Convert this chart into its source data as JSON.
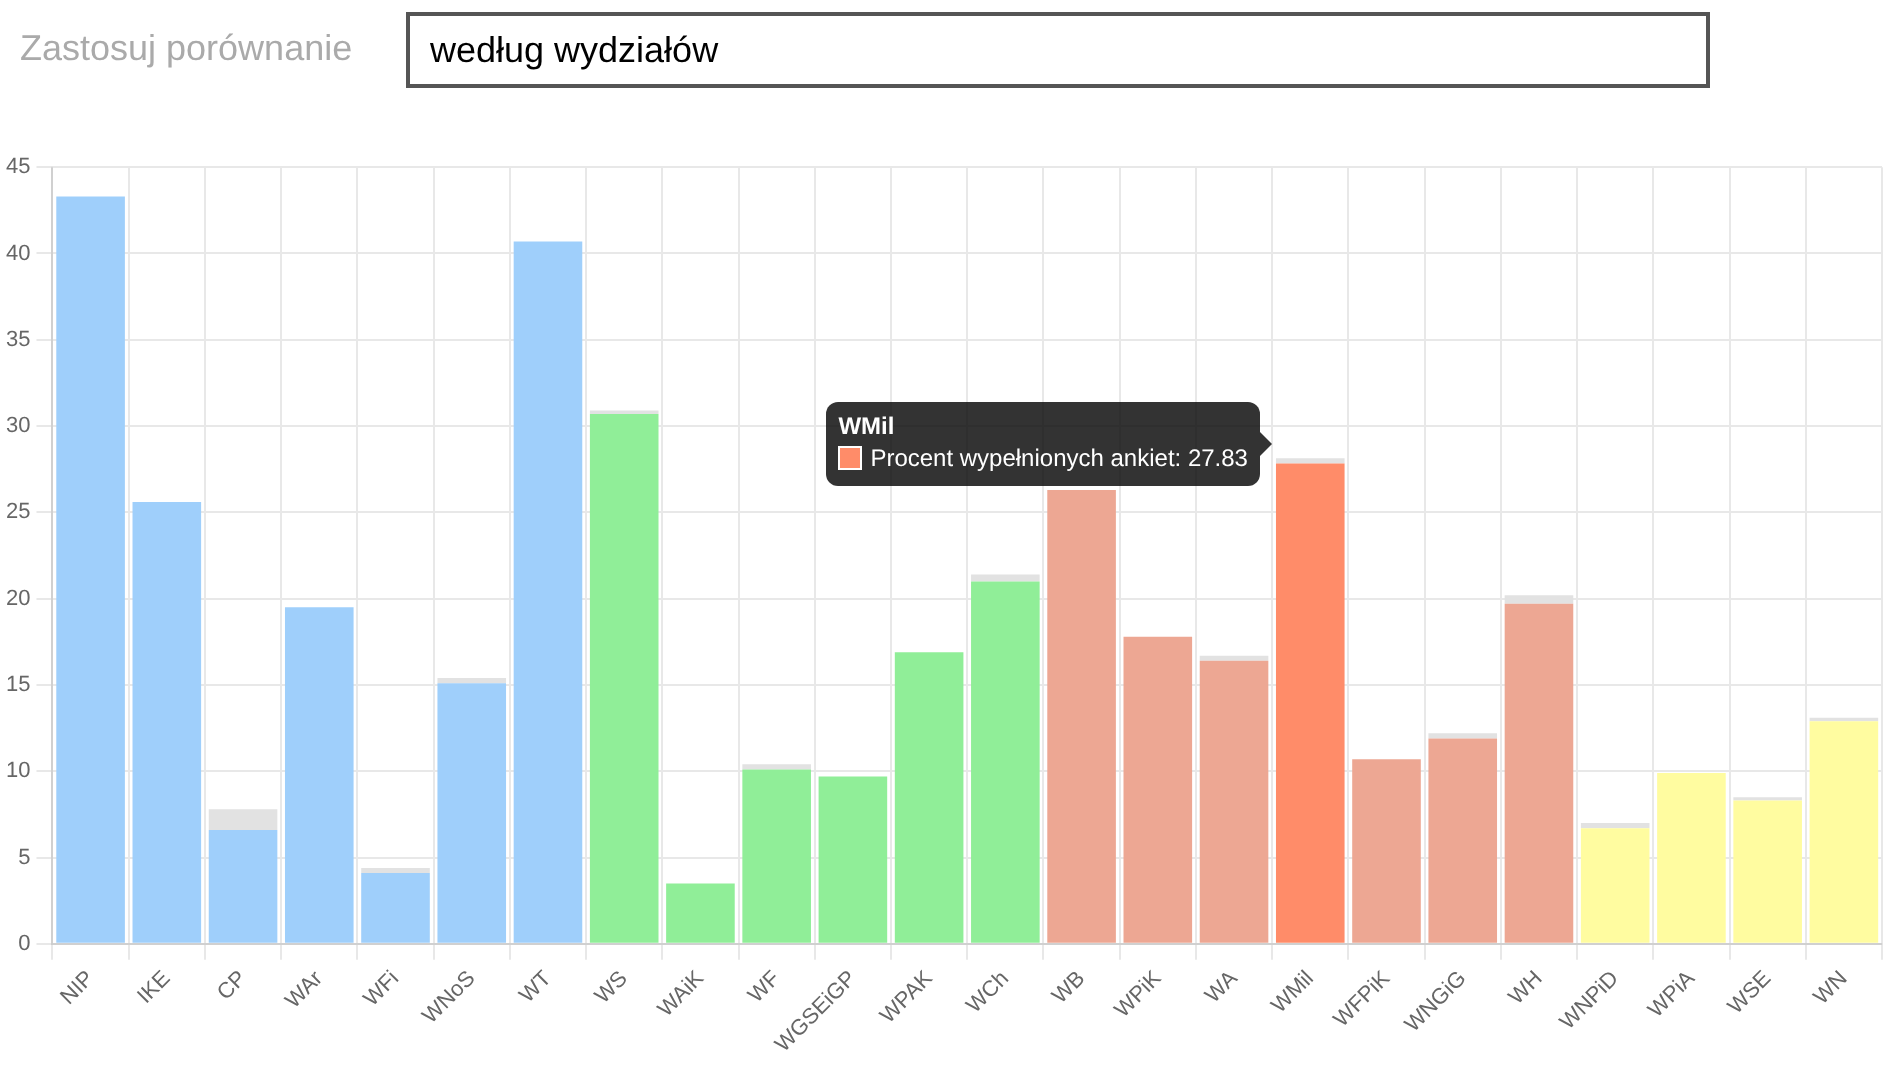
{
  "chart_data": {
    "type": "bar",
    "annotations": [
      "Zastosuj porównanie",
      "według wydziałów",
      {
        "text": "Procent wypełnionych ankiet: 27.83",
        "x": "WMil",
        "y": 27.83
      }
    ],
    "categories": [
      "NIP",
      "IKE",
      "CP",
      "WAr",
      "WFi",
      "WNoS",
      "WT",
      "WS",
      "WAiK",
      "WF",
      "WGSEiGP",
      "WPAK",
      "WCh",
      "WB",
      "WPiK",
      "WA",
      "WMil",
      "WFPiK",
      "WNGiG",
      "WH",
      "WNPiD",
      "WPiA",
      "WSE",
      "WN"
    ],
    "series": [
      {
        "colors": [
          "#9fcffb",
          "#9fcffb",
          "#9fcffb",
          "#9fcffb",
          "#9fcffb",
          "#9fcffb",
          "#9fcffb",
          "#90ee98",
          "#90ee98",
          "#90ee98",
          "#90ee98",
          "#90ee98",
          "#90ee98",
          "#eda793",
          "#eda793",
          "#eda793",
          "#ff8c69",
          "#eda793",
          "#eda793",
          "#eda793",
          "#fffca0",
          "#fffca0",
          "#fffca0",
          "#fffca0"
        ],
        "values": [
          43.3,
          25.6,
          6.6,
          19.5,
          4.1,
          15.1,
          40.7,
          30.7,
          3.5,
          10.1,
          9.7,
          16.9,
          21.0,
          26.3,
          17.8,
          16.4,
          27.83,
          10.7,
          11.9,
          19.7,
          6.7,
          9.9,
          8.3,
          12.9
        ]
      },
      {
        "color": "#e2e2e2",
        "values": [
          0,
          0,
          1.2,
          0,
          0.3,
          0.3,
          0,
          0.2,
          0,
          0.3,
          0,
          0,
          0.4,
          0,
          0,
          0.3,
          0.3,
          0,
          0.3,
          0.5,
          0.3,
          0,
          0.2,
          0.2
        ]
      }
    ],
    "stacked": true,
    "ylim": [
      0,
      45
    ],
    "yticks": [
      0,
      5,
      10,
      15,
      20,
      25,
      30,
      35,
      40,
      45
    ],
    "grid": true,
    "legend": false
  }
}
